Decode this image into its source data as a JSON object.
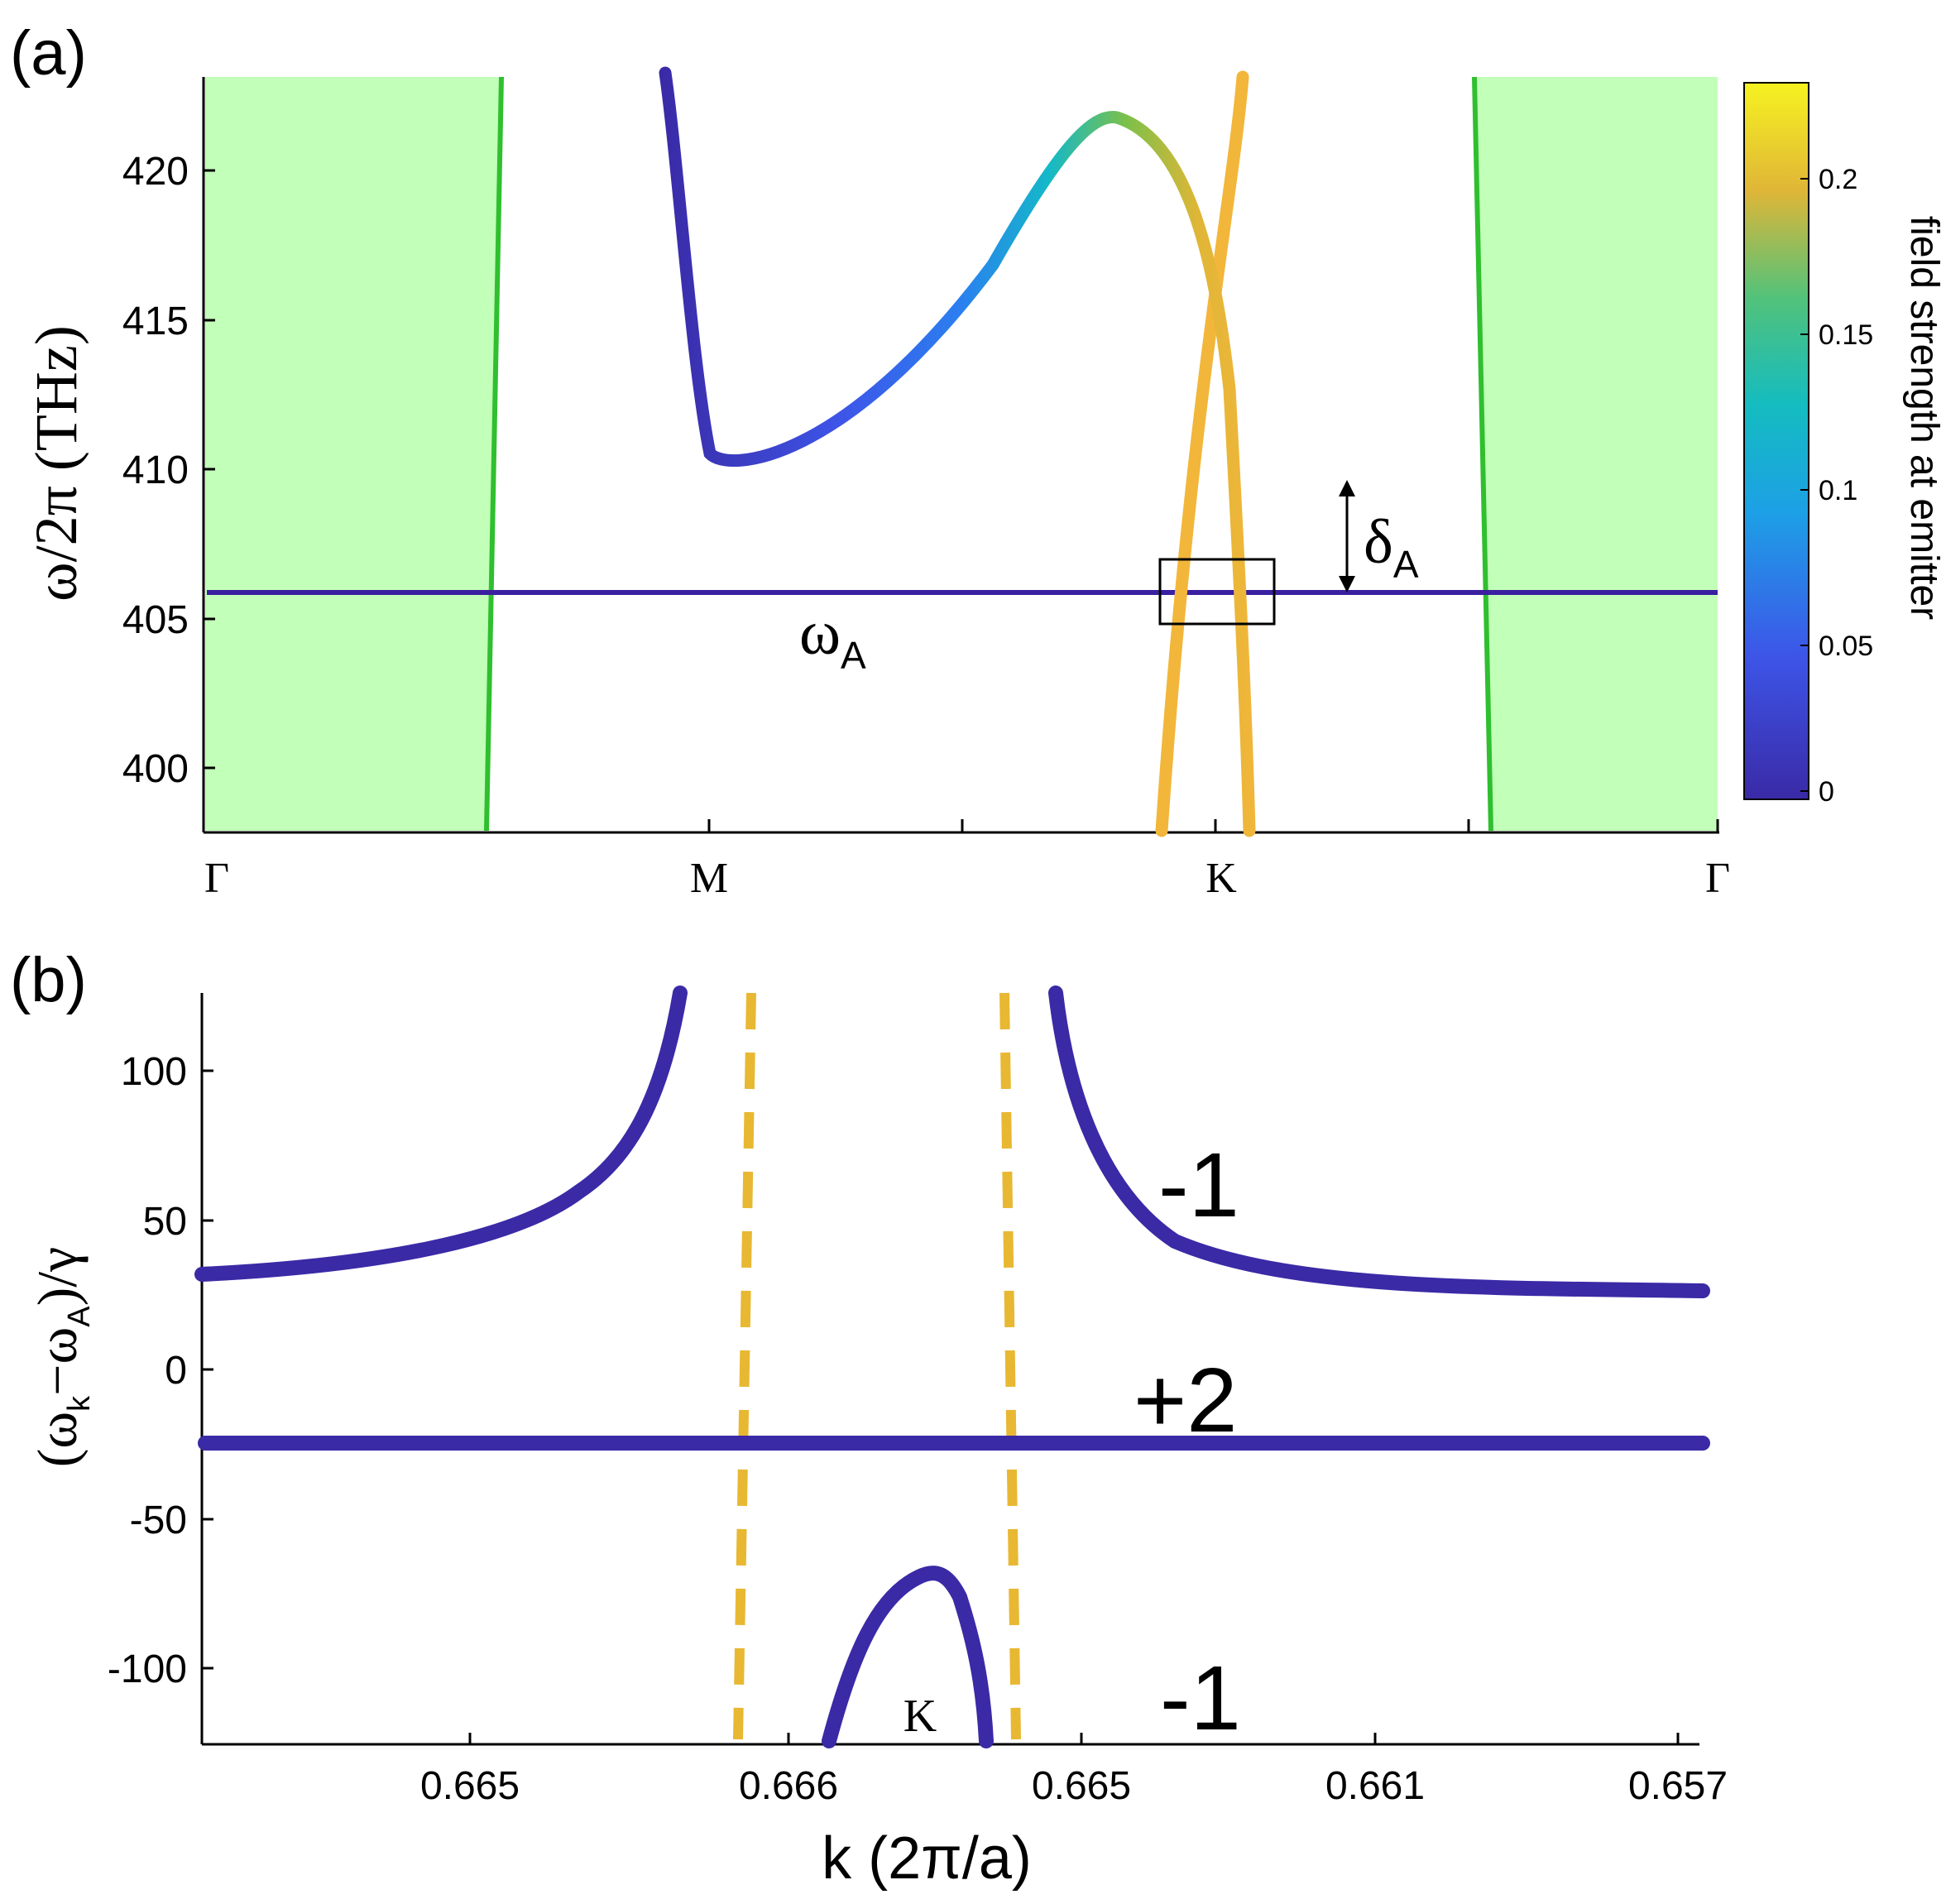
{
  "panel_a": {
    "label": "(a)",
    "y_axis_label": "ω/2π (THz)",
    "y_ticks": [
      400,
      405,
      410,
      415,
      420
    ],
    "x_ticks": [
      "Γ",
      "M",
      "K",
      "Γ"
    ],
    "omega_label_main": "ω",
    "omega_label_sub": "A",
    "delta_label_main": "δ",
    "delta_label_sub": "A",
    "colorbar": {
      "label": "field strength at emitter",
      "ticks": [
        "0",
        "0.05",
        "0.1",
        "0.15",
        "0.2"
      ],
      "tick_values": [
        0,
        0.05,
        0.1,
        0.15,
        0.2
      ],
      "range": [
        0,
        0.23
      ]
    },
    "colors": {
      "light_cone_fill": "#c2ffb8",
      "light_line": "#2fbf2f",
      "emitter_line": "#3a1fa0",
      "box": "#000000"
    }
  },
  "panel_b": {
    "label": "(b)",
    "y_axis_label_main": "(ω",
    "y_axis_label_sub1": "k",
    "y_axis_label_mid": "−ω",
    "y_axis_label_sub2": "A",
    "y_axis_label_end": ")/γ",
    "x_axis_label": "k (2π/a)",
    "y_ticks": [
      "-100",
      "-50",
      "0",
      "50",
      "100"
    ],
    "y_tick_values": [
      -100,
      -50,
      0,
      50,
      100
    ],
    "x_ticks": [
      "0.665",
      "0.666",
      "0.665",
      "0.661",
      "0.657"
    ],
    "k_point_label": "K",
    "winding_upper": "-1",
    "winding_middle": "+2",
    "winding_lower": "-1",
    "colors": {
      "curve": "#3a2aa6",
      "dashed": "#e8b833"
    }
  },
  "chart_data": [
    {
      "type": "line",
      "title": "",
      "xlabel": "",
      "ylabel": "ω/2π (THz)",
      "x_categories": [
        "Γ",
        "M",
        "K",
        "Γ"
      ],
      "ylim": [
        398,
        423
      ],
      "series": [
        {
          "values": [
            [
              0.9,
              423
            ],
            [
              0.96,
              413
            ],
            [
              1.0,
              410.2
            ],
            [
              1.2,
              411.5
            ],
            [
              1.5,
              418
            ],
            [
              1.77,
              421.8
            ],
            [
              1.9,
              418
            ],
            [
              2.0,
              406
            ],
            [
              2.08,
              398
            ]
          ]
        },
        {
          "values": [
            [
              1.78,
              398
            ],
            [
              1.9,
              404
            ],
            [
              2.0,
              409.8
            ],
            [
              2.08,
              417
            ],
            [
              2.1,
              423
            ]
          ]
        },
        {
          "values": [
            [
              0.0,
              405.8
            ],
            [
              3.0,
              405.8
            ]
          ]
        },
        {
          "values": [
            [
              0.56,
              398
            ],
            [
              0.59,
              423
            ]
          ]
        },
        {
          "values": [
            [
              2.41,
              423
            ],
            [
              2.44,
              398
            ]
          ]
        }
      ]
    },
    {
      "type": "line",
      "title": "",
      "xlabel": "k (2π/a)",
      "ylabel": "(ω_k−ω_A)/γ",
      "x_tick_labels": [
        "0.665",
        "0.666",
        "0.665",
        "0.661",
        "0.657"
      ],
      "ylim": [
        -125,
        125
      ],
      "series": [
        {
          "values": [
            [
              0.0,
              31
            ],
            [
              0.1,
              34
            ],
            [
              0.2,
              40
            ],
            [
              0.3,
              50
            ],
            [
              0.4,
              70
            ],
            [
              0.47,
              105
            ],
            [
              0.5,
              125
            ]
          ]
        },
        {
          "values": [
            [
              0.58,
              125
            ],
            [
              0.6,
              100
            ],
            [
              0.65,
              60
            ],
            [
              0.8,
              32
            ],
            [
              1.0,
              27
            ],
            [
              1.1,
              26
            ]
          ]
        },
        {
          "values": [
            [
              0.0,
              -25
            ],
            [
              1.1,
              -25
            ]
          ]
        },
        {
          "values": [
            [
              0.42,
              -125
            ],
            [
              0.47,
              -90
            ],
            [
              0.52,
              -75
            ],
            [
              0.57,
              -90
            ],
            [
              0.58,
              -125
            ]
          ]
        }
      ]
    }
  ]
}
